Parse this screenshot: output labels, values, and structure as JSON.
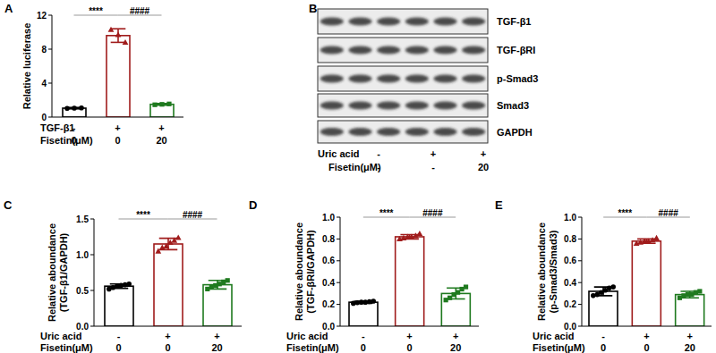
{
  "chart_data": [
    {
      "type": "bar",
      "title": "A",
      "ylabel": "Relative luciferase",
      "categories": [
        null,
        null,
        null
      ],
      "values": [
        1.05,
        9.6,
        1.5
      ],
      "errors": [
        0.08,
        0.8,
        0.1
      ],
      "points": [
        [
          1.02,
          1.05,
          1.08
        ],
        [
          10.3,
          9.7,
          8.8
        ],
        [
          1.45,
          1.5,
          1.55
        ]
      ],
      "colors": [
        "#000000",
        "#a01c1c",
        "#1f7a1f"
      ],
      "marker": [
        "circle",
        "triangle",
        "square"
      ],
      "ylim": [
        0,
        12
      ],
      "yticks": [
        0,
        4,
        8,
        12
      ],
      "conditions": [
        {
          "label": "TGF-β1",
          "entries": [
            "-",
            "+",
            "+"
          ]
        },
        {
          "label": "Fisetin(μM)",
          "entries": [
            "0",
            "0",
            "20"
          ]
        }
      ],
      "annotations": [
        {
          "from": 0,
          "to": 1,
          "text": "****"
        },
        {
          "from": 1,
          "to": 2,
          "text": "####"
        }
      ]
    },
    {
      "type": "bar",
      "title": "C",
      "ylabel": "Relative aboundance\n(TGF-β1/GAPDH)",
      "categories": [
        null,
        null,
        null
      ],
      "values": [
        0.56,
        1.15,
        0.58
      ],
      "errors": [
        0.03,
        0.08,
        0.06
      ],
      "points": [
        [
          0.52,
          0.54,
          0.56,
          0.57,
          0.58,
          0.59
        ],
        [
          1.05,
          1.1,
          1.12,
          1.17,
          1.2,
          1.24
        ],
        [
          0.52,
          0.55,
          0.57,
          0.59,
          0.62,
          0.64
        ]
      ],
      "colors": [
        "#000000",
        "#a01c1c",
        "#1f7a1f"
      ],
      "marker": [
        "circle",
        "triangle",
        "square"
      ],
      "ylim": [
        0,
        1.5
      ],
      "yticks": [
        {
          "value": 0,
          "label": "0.0"
        },
        0.5,
        {
          "value": 1,
          "label": "1.0"
        },
        1.5
      ],
      "conditions": [
        {
          "label": "Uric acid",
          "entries": [
            "-",
            "+",
            "+"
          ]
        },
        {
          "label": "Fisetin(μM)",
          "entries": [
            "0",
            "0",
            "20"
          ]
        }
      ],
      "annotations": [
        {
          "from": 0,
          "to": 1,
          "text": "****"
        },
        {
          "from": 1,
          "to": 2,
          "text": "####"
        }
      ]
    },
    {
      "type": "bar",
      "title": "D",
      "ylabel": "Relative aboundance\n(TGF-βRI/GAPDH)",
      "categories": [
        null,
        null,
        null
      ],
      "values": [
        0.22,
        0.82,
        0.3
      ],
      "errors": [
        0.01,
        0.02,
        0.05
      ],
      "points": [
        [
          0.21,
          0.215,
          0.22,
          0.22,
          0.225,
          0.23
        ],
        [
          0.8,
          0.81,
          0.82,
          0.82,
          0.83,
          0.85
        ],
        [
          0.24,
          0.26,
          0.29,
          0.31,
          0.34,
          0.36
        ]
      ],
      "colors": [
        "#000000",
        "#a01c1c",
        "#1f7a1f"
      ],
      "marker": [
        "circle",
        "triangle",
        "square"
      ],
      "ylim": [
        0,
        1
      ],
      "yticks": [
        {
          "value": 0,
          "label": "0.0"
        },
        0.2,
        0.4,
        0.6,
        0.8,
        {
          "value": 1,
          "label": "1.0"
        }
      ],
      "conditions": [
        {
          "label": "Uric acid",
          "entries": [
            "-",
            "+",
            "+"
          ]
        },
        {
          "label": "Fisetin(μM)",
          "entries": [
            "0",
            "0",
            "20"
          ]
        }
      ],
      "annotations": [
        {
          "from": 0,
          "to": 1,
          "text": "****"
        },
        {
          "from": 1,
          "to": 2,
          "text": "####"
        }
      ]
    },
    {
      "type": "bar",
      "title": "E",
      "ylabel": "Relative aboundance\n(p-Smad3/Smad3)",
      "categories": [
        null,
        null,
        null
      ],
      "values": [
        0.32,
        0.78,
        0.29
      ],
      "errors": [
        0.04,
        0.02,
        0.03
      ],
      "points": [
        [
          0.28,
          0.29,
          0.31,
          0.33,
          0.35,
          0.36
        ],
        [
          0.76,
          0.77,
          0.78,
          0.78,
          0.79,
          0.81
        ],
        [
          0.26,
          0.28,
          0.29,
          0.29,
          0.31,
          0.32
        ]
      ],
      "colors": [
        "#000000",
        "#a01c1c",
        "#1f7a1f"
      ],
      "marker": [
        "circle",
        "triangle",
        "square"
      ],
      "ylim": [
        0,
        1
      ],
      "yticks": [
        {
          "value": 0,
          "label": "0.0"
        },
        0.2,
        0.4,
        0.6,
        0.8,
        {
          "value": 1,
          "label": "1.0"
        }
      ],
      "conditions": [
        {
          "label": "Uric acid",
          "entries": [
            "-",
            "+",
            "+"
          ]
        },
        {
          "label": "Fisetin(μM)",
          "entries": [
            "0",
            "0",
            "20"
          ]
        }
      ],
      "annotations": [
        {
          "from": 0,
          "to": 1,
          "text": "****"
        },
        {
          "from": 1,
          "to": 2,
          "text": "####"
        }
      ]
    }
  ],
  "blot": {
    "title": "B",
    "rows": [
      "TGF-β1",
      "TGF-βRI",
      "p-Smad3",
      "Smad3",
      "GAPDH"
    ],
    "conditions": [
      {
        "label": "Uric acid",
        "entries": [
          "-",
          "+",
          "+"
        ]
      },
      {
        "label": "Fisetin(μM)",
        "entries": [
          "-",
          "-",
          "20"
        ]
      }
    ]
  }
}
